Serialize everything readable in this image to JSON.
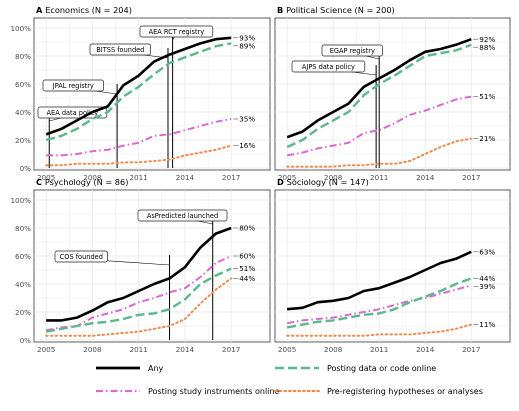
{
  "chart_data": [
    {
      "type": "line",
      "panel": "A",
      "title": "A Economics (N = 204)",
      "x": [
        2005,
        2006,
        2007,
        2008,
        2009,
        2010,
        2011,
        2012,
        2013,
        2014,
        2015,
        2016,
        2017
      ],
      "series": [
        {
          "name": "Any",
          "values": [
            24,
            28,
            34,
            40,
            44,
            59,
            66,
            76,
            81,
            85,
            89,
            92,
            93
          ]
        },
        {
          "name": "Posting data or code online",
          "values": [
            20,
            23,
            28,
            35,
            40,
            51,
            58,
            67,
            75,
            79,
            83,
            87,
            89
          ]
        },
        {
          "name": "Posting study instruments online",
          "values": [
            9,
            9,
            10,
            12,
            13,
            16,
            18,
            23,
            24,
            27,
            30,
            33,
            35
          ]
        },
        {
          "name": "Pre-registering hypotheses or analyses",
          "values": [
            2,
            2,
            3,
            3,
            3,
            4,
            4,
            5,
            6,
            9,
            11,
            13,
            16
          ]
        }
      ],
      "end_labels": [
        "93%",
        "89%",
        "35%",
        "16%"
      ],
      "annotations": [
        {
          "label": "AEA data policy",
          "x": 2005.2
        },
        {
          "label": "JPAL registry",
          "x": 2009.6
        },
        {
          "label": "BITSS founded",
          "x": 2012.9
        },
        {
          "label": "AEA RCT registry",
          "x": 2013.2
        }
      ],
      "ylim": [
        0,
        100
      ],
      "yticks": [
        "0%",
        "20%",
        "40%",
        "60%",
        "80%",
        "100%"
      ],
      "xticks": [
        "2005",
        "2008",
        "2011",
        "2014",
        "2017"
      ]
    },
    {
      "type": "line",
      "panel": "B",
      "title": "B Political Science (N = 200)",
      "x": [
        2005,
        2006,
        2007,
        2008,
        2009,
        2010,
        2011,
        2012,
        2013,
        2014,
        2015,
        2016,
        2017
      ],
      "series": [
        {
          "name": "Any",
          "values": [
            22,
            26,
            34,
            40,
            46,
            58,
            64,
            70,
            77,
            83,
            85,
            88,
            92
          ]
        },
        {
          "name": "Posting data or code online",
          "values": [
            15,
            20,
            28,
            34,
            40,
            52,
            60,
            66,
            73,
            80,
            82,
            84,
            88
          ]
        },
        {
          "name": "Posting study instruments online",
          "values": [
            9,
            11,
            14,
            16,
            18,
            25,
            27,
            32,
            38,
            41,
            45,
            49,
            51
          ]
        },
        {
          "name": "Pre-registering hypotheses or analyses",
          "values": [
            1,
            1,
            1,
            1,
            2,
            2,
            3,
            3,
            5,
            10,
            15,
            19,
            21
          ]
        }
      ],
      "end_labels": [
        "92%",
        "88%",
        "51%",
        "21%"
      ],
      "annotations": [
        {
          "label": "AJPS data policy",
          "x": 2010.8
        },
        {
          "label": "EGAP registry",
          "x": 2011.0
        }
      ],
      "ylim": [
        0,
        100
      ],
      "yticks": [
        "0%",
        "20%",
        "40%",
        "60%",
        "80%",
        "100%"
      ],
      "xticks": [
        "2005",
        "2008",
        "2011",
        "2014",
        "2017"
      ]
    },
    {
      "type": "line",
      "panel": "C",
      "title": "C Psychology (N = 86)",
      "x": [
        2005,
        2006,
        2007,
        2008,
        2009,
        2010,
        2011,
        2012,
        2013,
        2014,
        2015,
        2016,
        2017
      ],
      "series": [
        {
          "name": "Any",
          "values": [
            14,
            14,
            16,
            21,
            27,
            30,
            35,
            40,
            44,
            52,
            66,
            76,
            80
          ]
        },
        {
          "name": "Posting data or code online",
          "values": [
            6,
            8,
            10,
            12,
            13,
            15,
            18,
            19,
            22,
            29,
            40,
            46,
            51
          ]
        },
        {
          "name": "Posting study instruments online",
          "values": [
            7,
            9,
            10,
            16,
            19,
            22,
            27,
            30,
            34,
            37,
            45,
            55,
            60
          ]
        },
        {
          "name": "Pre-registering hypotheses or analyses",
          "values": [
            3,
            3,
            3,
            3,
            4,
            5,
            6,
            8,
            10,
            15,
            26,
            36,
            44
          ]
        }
      ],
      "end_labels": [
        "80%",
        "51%",
        "60%",
        "44%"
      ],
      "annotations": [
        {
          "label": "COS founded",
          "x": 2013.0
        },
        {
          "label": "AsPredicted launched",
          "x": 2015.8
        }
      ],
      "ylim": [
        0,
        100
      ],
      "yticks": [
        "0%",
        "20%",
        "40%",
        "60%",
        "80%",
        "100%"
      ],
      "xticks": [
        "2005",
        "2008",
        "2011",
        "2014",
        "2017"
      ]
    },
    {
      "type": "line",
      "panel": "D",
      "title": "D Sociology (N = 147)",
      "x": [
        2005,
        2006,
        2007,
        2008,
        2009,
        2010,
        2011,
        2012,
        2013,
        2014,
        2015,
        2016,
        2017
      ],
      "series": [
        {
          "name": "Any",
          "values": [
            22,
            23,
            27,
            28,
            30,
            35,
            37,
            41,
            45,
            50,
            55,
            58,
            63
          ]
        },
        {
          "name": "Posting data or code online",
          "values": [
            9,
            11,
            13,
            14,
            16,
            18,
            19,
            22,
            27,
            31,
            35,
            40,
            44
          ]
        },
        {
          "name": "Posting study instruments online",
          "values": [
            12,
            14,
            15,
            16,
            18,
            20,
            22,
            25,
            28,
            30,
            33,
            36,
            39
          ]
        },
        {
          "name": "Pre-registering hypotheses or analyses",
          "values": [
            3,
            3,
            3,
            3,
            3,
            3,
            4,
            4,
            4,
            5,
            6,
            8,
            11
          ]
        }
      ],
      "end_labels": [
        "63%",
        "44%",
        "39%",
        "11%"
      ],
      "annotations": [],
      "ylim": [
        0,
        100
      ],
      "yticks": [
        "0%",
        "20%",
        "40%",
        "60%",
        "80%",
        "100%"
      ],
      "xticks": [
        "2005",
        "2008",
        "2011",
        "2014",
        "2017"
      ]
    }
  ],
  "legend": [
    {
      "name": "Any",
      "style": "solid",
      "color": "#000000"
    },
    {
      "name": "Posting data or code online",
      "style": "longdash",
      "color": "#5cb88c"
    },
    {
      "name": "Posting study instruments online",
      "style": "dashdot",
      "color": "#d86ad0"
    },
    {
      "name": "Pre-registering hypotheses or analyses",
      "style": "dotted",
      "color": "#ef8a4e"
    }
  ],
  "colors": {
    "any": "#000000",
    "data": "#5cb88c",
    "instruments": "#d86ad0",
    "prereg": "#ef8a4e",
    "grid": "#e6e6e6",
    "axis_text": "#4d4d4d"
  }
}
